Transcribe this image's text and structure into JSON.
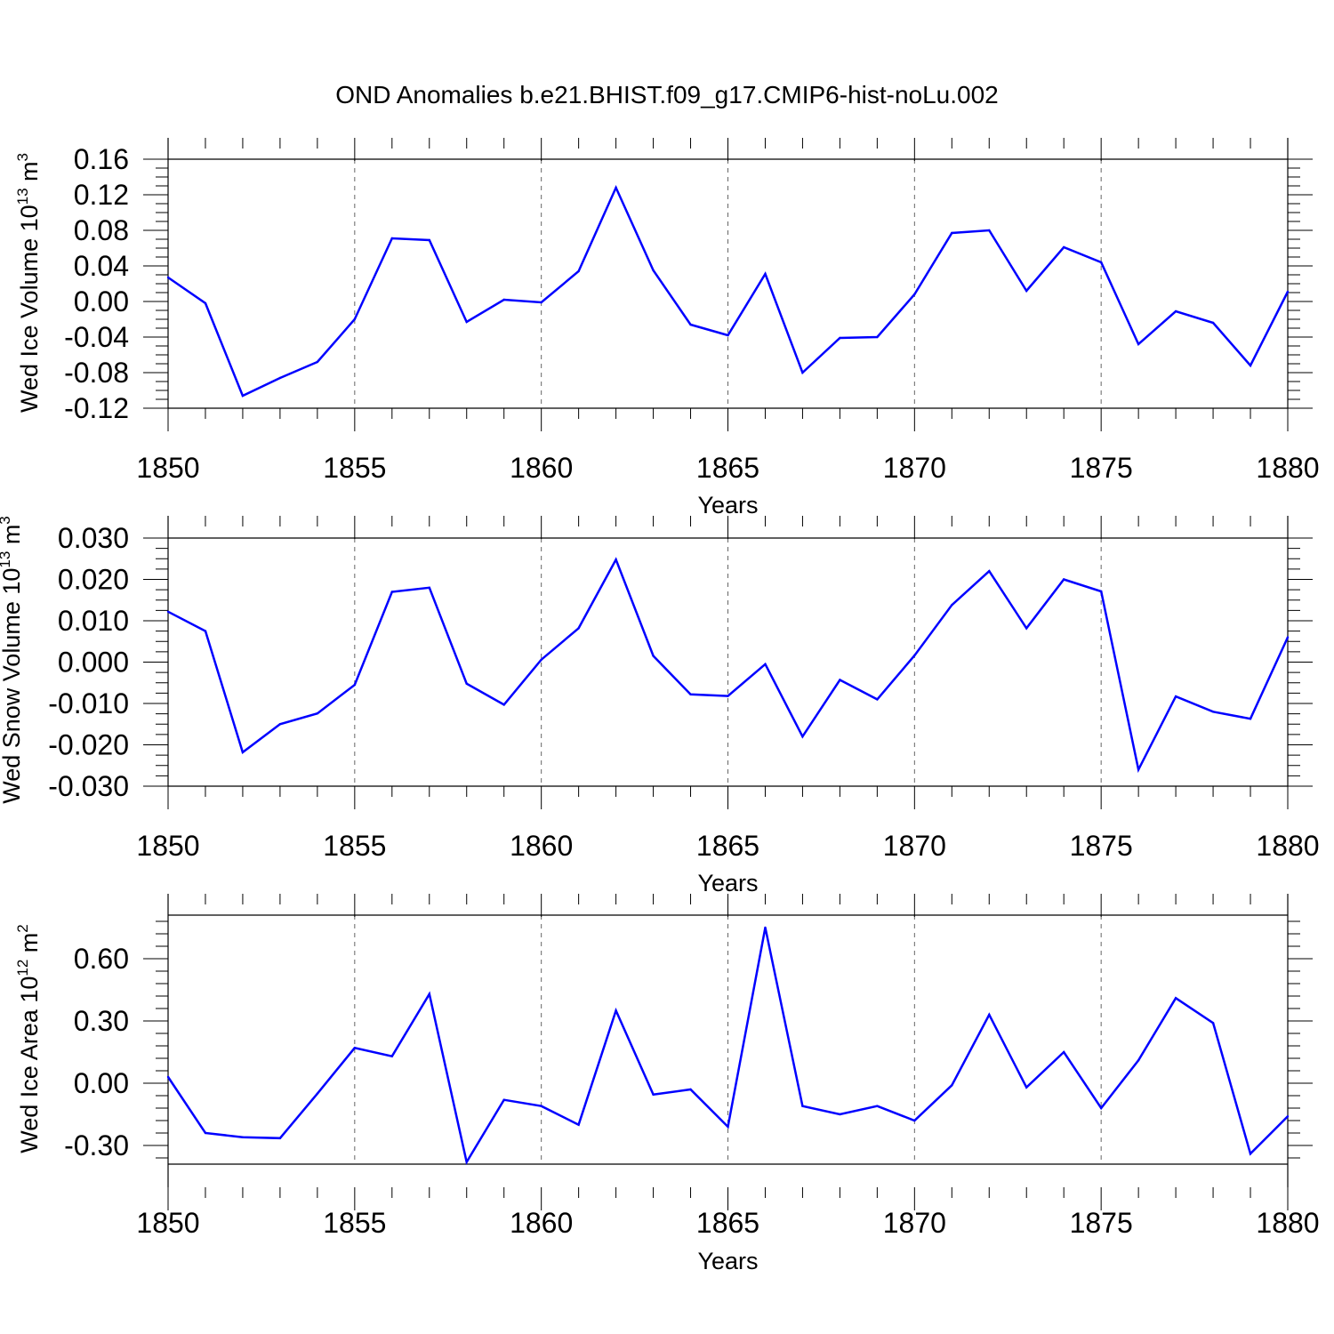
{
  "title": "OND Anomalies b.e21.BHIST.f09_g17.CMIP6-hist-noLu.002",
  "line_color": "#0000ff",
  "chart_data": [
    {
      "type": "line",
      "ylabel_main": "Wed Ice Volume 10",
      "ylabel_exp": "13",
      "ylabel_unit": " m",
      "ylabel_unit_exp": "3",
      "xlabel": "Years",
      "xlim": [
        1850,
        1880
      ],
      "ylim": [
        -0.12,
        0.16
      ],
      "x_ticks": [
        "1850",
        "1855",
        "1860",
        "1865",
        "1870",
        "1875",
        "1880"
      ],
      "y_ticks": [
        "-0.12",
        "-0.08",
        "-0.04",
        "0.00",
        "0.04",
        "0.08",
        "0.12",
        "0.16"
      ],
      "grid": "vertical dashed at labeled years",
      "x": [
        1850,
        1851,
        1852,
        1853,
        1854,
        1855,
        1856,
        1857,
        1858,
        1859,
        1860,
        1861,
        1862,
        1863,
        1864,
        1865,
        1866,
        1867,
        1868,
        1869,
        1870,
        1871,
        1872,
        1873,
        1874,
        1875,
        1876,
        1877,
        1878,
        1879,
        1880
      ],
      "values": [
        0.027,
        -0.002,
        -0.106,
        -0.086,
        -0.068,
        -0.02,
        0.071,
        0.069,
        -0.023,
        0.002,
        -0.001,
        0.034,
        0.128,
        0.035,
        -0.026,
        -0.038,
        0.031,
        -0.08,
        -0.041,
        -0.04,
        0.008,
        0.077,
        0.08,
        0.012,
        0.061,
        0.044,
        -0.048,
        -0.011,
        -0.024,
        -0.072,
        0.011
      ]
    },
    {
      "type": "line",
      "ylabel_main": "Wed Snow Volume 10",
      "ylabel_exp": "13",
      "ylabel_unit": " m",
      "ylabel_unit_exp": "3",
      "xlabel": "Years",
      "xlim": [
        1850,
        1880
      ],
      "ylim": [
        -0.03,
        0.03
      ],
      "x_ticks": [
        "1850",
        "1855",
        "1860",
        "1865",
        "1870",
        "1875",
        "1880"
      ],
      "y_ticks": [
        "-0.030",
        "-0.020",
        "-0.010",
        "0.000",
        "0.010",
        "0.020",
        "0.030"
      ],
      "grid": "vertical dashed at labeled years",
      "x": [
        1850,
        1851,
        1852,
        1853,
        1854,
        1855,
        1856,
        1857,
        1858,
        1859,
        1860,
        1861,
        1862,
        1863,
        1864,
        1865,
        1866,
        1867,
        1868,
        1869,
        1870,
        1871,
        1872,
        1873,
        1874,
        1875,
        1876,
        1877,
        1878,
        1879,
        1880
      ],
      "values": [
        0.0122,
        0.0075,
        -0.0218,
        -0.015,
        -0.0124,
        -0.0055,
        0.017,
        0.018,
        -0.0052,
        -0.0103,
        0.0006,
        0.0082,
        0.0248,
        0.0015,
        -0.0078,
        -0.0082,
        -0.0005,
        -0.018,
        -0.0043,
        -0.009,
        0.0016,
        0.0138,
        0.022,
        0.0082,
        0.02,
        0.0171,
        -0.026,
        -0.0083,
        -0.012,
        -0.0137,
        0.006
      ]
    },
    {
      "type": "line",
      "ylabel_main": "Wed Ice Area 10",
      "ylabel_exp": "12",
      "ylabel_unit": " m",
      "ylabel_unit_exp": "2",
      "xlabel": "Years",
      "xlim": [
        1850,
        1880
      ],
      "ylim": [
        -0.39,
        0.81
      ],
      "x_ticks": [
        "1850",
        "1855",
        "1860",
        "1865",
        "1870",
        "1875",
        "1880"
      ],
      "y_ticks": [
        "-0.30",
        "0.00",
        "0.30",
        "0.60"
      ],
      "grid": "vertical dashed at labeled years",
      "x": [
        1850,
        1851,
        1852,
        1853,
        1854,
        1855,
        1856,
        1857,
        1858,
        1859,
        1860,
        1861,
        1862,
        1863,
        1864,
        1865,
        1866,
        1867,
        1868,
        1869,
        1870,
        1871,
        1872,
        1873,
        1874,
        1875,
        1876,
        1877,
        1878,
        1879,
        1880
      ],
      "values": [
        0.03,
        -0.24,
        -0.26,
        -0.265,
        -0.05,
        0.17,
        0.13,
        0.43,
        -0.38,
        -0.08,
        -0.11,
        -0.2,
        0.35,
        -0.055,
        -0.03,
        -0.21,
        0.75,
        -0.11,
        -0.15,
        -0.11,
        -0.18,
        -0.01,
        0.33,
        -0.02,
        0.15,
        -0.12,
        0.11,
        0.41,
        0.29,
        -0.34,
        -0.16
      ]
    }
  ]
}
